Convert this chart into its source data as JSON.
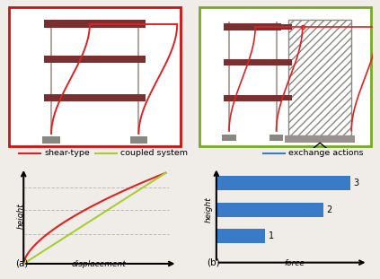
{
  "fig_width": 4.23,
  "fig_height": 3.11,
  "bg_color": "#f0ede8",
  "left_box_color": "#cc1111",
  "right_box_color": "#77aa22",
  "beam_color": "#7a3030",
  "column_color": "#b0a8a0",
  "modal_red": "#dd2222",
  "modal_green": "#aacc33",
  "bar_color": "#3a7bc8",
  "legend_line_red": "#dd2222",
  "legend_line_green": "#aacc33",
  "legend_line_blue": "#3a7bc8",
  "shear_label": "shear-type",
  "coupled_label": "coupled system",
  "exchange_label": "exchange actions",
  "disp_label": "displacement",
  "height_label": "height",
  "force_label": "force",
  "a_label": "(a)",
  "b_label": "(b)",
  "bar_values": [
    2.2,
    4.8,
    6.0
  ],
  "bar_levels": [
    1,
    2,
    3
  ],
  "bar_height": 0.55,
  "grid_levels": [
    0.33,
    0.56,
    0.78
  ]
}
